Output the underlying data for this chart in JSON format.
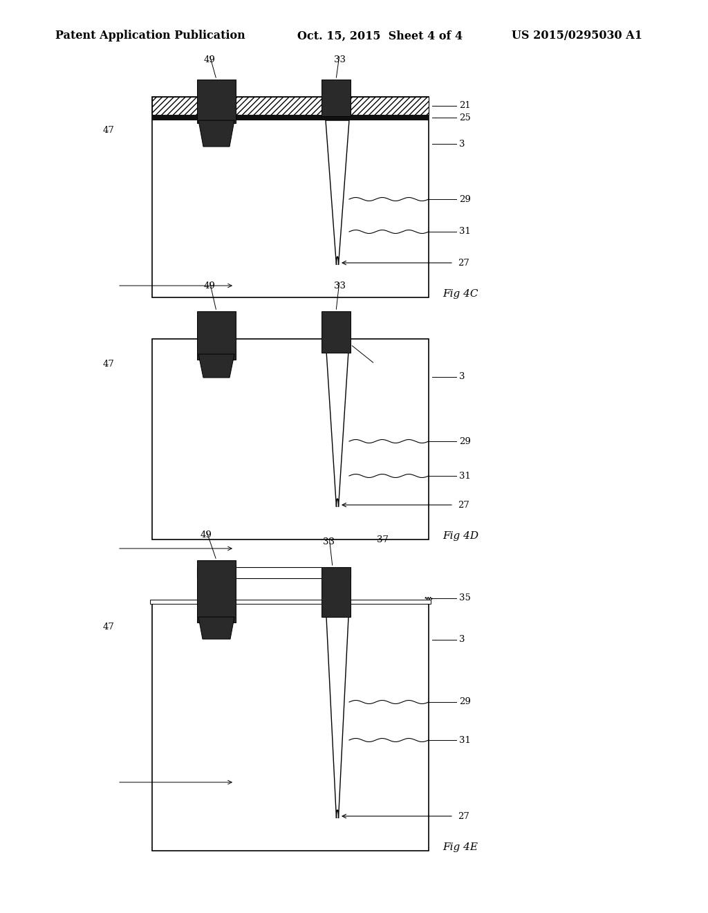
{
  "header_left": "Patent Application Publication",
  "header_mid": "Oct. 15, 2015  Sheet 4 of 4",
  "header_right": "US 2015/0295030 A1",
  "background": "#ffffff"
}
